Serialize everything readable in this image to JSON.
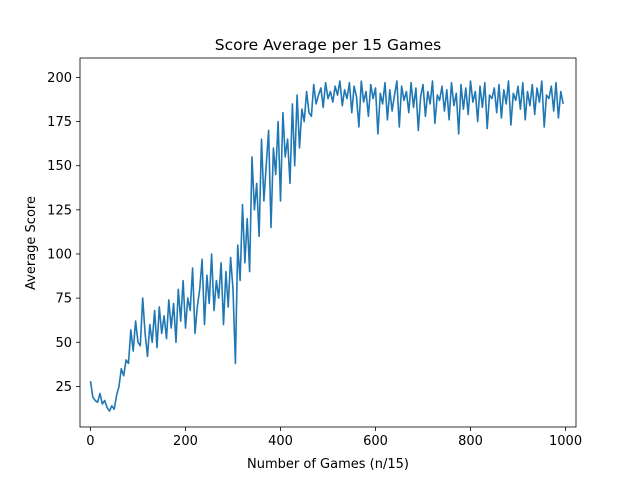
{
  "chart_data": {
    "type": "line",
    "title": "Score Average per 15 Games",
    "xlabel": "Number of Games (n/15)",
    "ylabel": "Average Score",
    "xlim": [
      -22,
      1022
    ],
    "ylim": [
      2,
      211
    ],
    "xticks": [
      0,
      200,
      400,
      600,
      800,
      1000
    ],
    "yticks": [
      25,
      50,
      75,
      100,
      125,
      150,
      175,
      200
    ],
    "grid": false,
    "legend": "none",
    "colors": {
      "line": "#1f77b4",
      "axes": "#000000",
      "background": "#ffffff"
    },
    "series": [
      {
        "x": [
          0,
          5,
          10,
          15,
          20,
          25,
          30,
          35,
          40,
          45,
          50,
          55,
          60,
          65,
          70,
          75,
          80,
          85,
          90,
          95,
          100,
          105,
          110,
          115,
          120,
          125,
          130,
          135,
          140,
          145,
          150,
          155,
          160,
          165,
          170,
          175,
          180,
          185,
          190,
          195,
          200,
          205,
          210,
          215,
          220,
          225,
          230,
          235,
          240,
          245,
          250,
          255,
          260,
          265,
          270,
          275,
          280,
          285,
          290,
          295,
          300,
          305,
          310,
          315,
          320,
          325,
          330,
          335,
          340,
          345,
          350,
          355,
          360,
          365,
          370,
          375,
          380,
          385,
          390,
          395,
          400,
          405,
          410,
          415,
          420,
          425,
          430,
          435,
          440,
          445,
          450,
          455,
          460,
          465,
          470,
          475,
          480,
          485,
          490,
          495,
          500,
          505,
          510,
          515,
          520,
          525,
          530,
          535,
          540,
          545,
          550,
          555,
          560,
          565,
          570,
          575,
          580,
          585,
          590,
          595,
          600,
          605,
          610,
          615,
          620,
          625,
          630,
          635,
          640,
          645,
          650,
          655,
          660,
          665,
          670,
          675,
          680,
          685,
          690,
          695,
          700,
          705,
          710,
          715,
          720,
          725,
          730,
          735,
          740,
          745,
          750,
          755,
          760,
          765,
          770,
          775,
          780,
          785,
          790,
          795,
          800,
          805,
          810,
          815,
          820,
          825,
          830,
          835,
          840,
          845,
          850,
          855,
          860,
          865,
          870,
          875,
          880,
          885,
          890,
          895,
          900,
          905,
          910,
          915,
          920,
          925,
          930,
          935,
          940,
          945,
          950,
          955,
          960,
          965,
          970,
          975,
          980,
          985,
          990,
          995
        ],
        "y": [
          28,
          19,
          17,
          16,
          21,
          15,
          17,
          13,
          11,
          14,
          12,
          20,
          25,
          35,
          31,
          40,
          38,
          57,
          45,
          62,
          50,
          48,
          75,
          55,
          42,
          60,
          50,
          68,
          47,
          70,
          55,
          65,
          52,
          74,
          58,
          72,
          50,
          80,
          62,
          85,
          58,
          75,
          68,
          92,
          55,
          70,
          80,
          97,
          60,
          88,
          72,
          100,
          68,
          85,
          75,
          95,
          60,
          90,
          70,
          98,
          80,
          38,
          105,
          85,
          128,
          95,
          120,
          90,
          155,
          125,
          140,
          110,
          165,
          130,
          150,
          170,
          115,
          160,
          145,
          175,
          130,
          180,
          155,
          165,
          140,
          185,
          150,
          190,
          160,
          182,
          175,
          192,
          180,
          178,
          196,
          185,
          190,
          194,
          183,
          197,
          188,
          192,
          186,
          195,
          190,
          198,
          184,
          193,
          188,
          197,
          180,
          195,
          189,
          172,
          198,
          186,
          192,
          178,
          196,
          188,
          194,
          168,
          191,
          185,
          197,
          176,
          193,
          181,
          190,
          198,
          172,
          195,
          187,
          192,
          180,
          197,
          183,
          194,
          170,
          189,
          196,
          178,
          192,
          185,
          198,
          174,
          190,
          187,
          195,
          181,
          193,
          176,
          197,
          184,
          191,
          168,
          196,
          182,
          194,
          179,
          198,
          186,
          192,
          175,
          195,
          183,
          197,
          171,
          190,
          188,
          194,
          180,
          196,
          177,
          193,
          185,
          198,
          173,
          191,
          187,
          195,
          182,
          197,
          176,
          192,
          184,
          196,
          179,
          194,
          186,
          198,
          172,
          190,
          188,
          195,
          181,
          197,
          177,
          192,
          185
        ]
      }
    ]
  }
}
